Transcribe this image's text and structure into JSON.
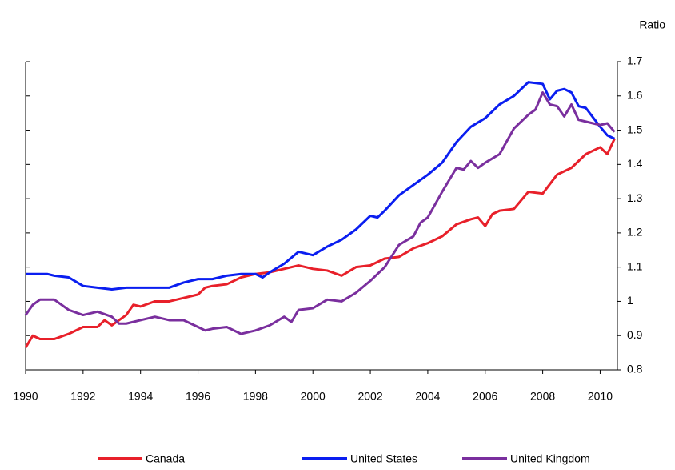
{
  "chart_data": {
    "type": "line",
    "y_axis_label": "Ratio",
    "xlim": [
      1990,
      2010.6
    ],
    "xticks": [
      1990,
      1992,
      1994,
      1996,
      1998,
      2000,
      2002,
      2004,
      2006,
      2008,
      2010
    ],
    "ylim": [
      0.8,
      1.7
    ],
    "yticks": [
      0.8,
      0.9,
      1,
      1.1,
      1.2,
      1.3,
      1.4,
      1.5,
      1.6,
      1.7
    ],
    "series": [
      {
        "name": "Canada",
        "color": "#e8202a",
        "x": [
          1990,
          1990.25,
          1990.5,
          1991,
          1991.5,
          1992,
          1992.5,
          1992.75,
          1993,
          1993.5,
          1993.75,
          1994,
          1994.5,
          1995,
          1995.5,
          1996,
          1996.25,
          1996.5,
          1997,
          1997.5,
          1998,
          1998.5,
          1999,
          1999.5,
          2000,
          2000.5,
          2001,
          2001.5,
          2002,
          2002.5,
          2003,
          2003.5,
          2004,
          2004.5,
          2005,
          2005.5,
          2005.75,
          2006,
          2006.25,
          2006.5,
          2007,
          2007.5,
          2008,
          2008.5,
          2009,
          2009.5,
          2010,
          2010.25,
          2010.5
        ],
        "values": [
          0.865,
          0.9,
          0.89,
          0.89,
          0.905,
          0.925,
          0.925,
          0.945,
          0.93,
          0.96,
          0.99,
          0.985,
          1.0,
          1.0,
          1.01,
          1.02,
          1.04,
          1.045,
          1.05,
          1.07,
          1.08,
          1.085,
          1.095,
          1.105,
          1.095,
          1.09,
          1.075,
          1.1,
          1.105,
          1.125,
          1.13,
          1.155,
          1.17,
          1.19,
          1.225,
          1.24,
          1.245,
          1.22,
          1.255,
          1.265,
          1.27,
          1.32,
          1.315,
          1.37,
          1.39,
          1.43,
          1.45,
          1.43,
          1.475
        ]
      },
      {
        "name": "United States",
        "color": "#0a1ef0",
        "x": [
          1990,
          1990.75,
          1991,
          1991.5,
          1992,
          1992.5,
          1993,
          1993.5,
          1994,
          1994.5,
          1995,
          1995.5,
          1996,
          1996.5,
          1997,
          1997.5,
          1998,
          1998.25,
          1998.5,
          1999,
          1999.5,
          2000,
          2000.5,
          2001,
          2001.5,
          2002,
          2002.25,
          2002.5,
          2003,
          2003.5,
          2004,
          2004.5,
          2005,
          2005.5,
          2006,
          2006.5,
          2007,
          2007.5,
          2008,
          2008.25,
          2008.5,
          2008.75,
          2009,
          2009.25,
          2009.5,
          2010,
          2010.25,
          2010.5
        ],
        "values": [
          1.08,
          1.08,
          1.075,
          1.07,
          1.045,
          1.04,
          1.035,
          1.04,
          1.04,
          1.04,
          1.04,
          1.055,
          1.065,
          1.065,
          1.075,
          1.08,
          1.08,
          1.07,
          1.085,
          1.11,
          1.145,
          1.135,
          1.16,
          1.18,
          1.21,
          1.25,
          1.245,
          1.265,
          1.31,
          1.34,
          1.37,
          1.405,
          1.465,
          1.51,
          1.535,
          1.575,
          1.6,
          1.64,
          1.635,
          1.59,
          1.615,
          1.62,
          1.61,
          1.57,
          1.565,
          1.51,
          1.485,
          1.475
        ]
      },
      {
        "name": "United Kingdom",
        "color": "#7a2f9e",
        "x": [
          1990,
          1990.25,
          1990.5,
          1991,
          1991.5,
          1992,
          1992.5,
          1993,
          1993.25,
          1993.5,
          1994,
          1994.5,
          1995,
          1995.5,
          1996,
          1996.25,
          1996.5,
          1997,
          1997.5,
          1998,
          1998.5,
          1999,
          1999.25,
          1999.5,
          2000,
          2000.5,
          2001,
          2001.5,
          2002,
          2002.5,
          2003,
          2003.5,
          2003.75,
          2004,
          2004.5,
          2005,
          2005.25,
          2005.5,
          2005.75,
          2006,
          2006.5,
          2007,
          2007.5,
          2007.75,
          2008,
          2008.25,
          2008.5,
          2008.75,
          2009,
          2009.25,
          2009.5,
          2010,
          2010.25,
          2010.5
        ],
        "values": [
          0.96,
          0.99,
          1.005,
          1.005,
          0.975,
          0.96,
          0.97,
          0.955,
          0.935,
          0.935,
          0.945,
          0.955,
          0.945,
          0.945,
          0.925,
          0.915,
          0.92,
          0.925,
          0.905,
          0.915,
          0.93,
          0.955,
          0.94,
          0.975,
          0.98,
          1.005,
          1.0,
          1.025,
          1.06,
          1.1,
          1.165,
          1.19,
          1.23,
          1.245,
          1.32,
          1.39,
          1.385,
          1.41,
          1.39,
          1.405,
          1.43,
          1.505,
          1.545,
          1.56,
          1.61,
          1.575,
          1.57,
          1.54,
          1.575,
          1.53,
          1.525,
          1.515,
          1.52,
          1.495
        ]
      }
    ]
  }
}
